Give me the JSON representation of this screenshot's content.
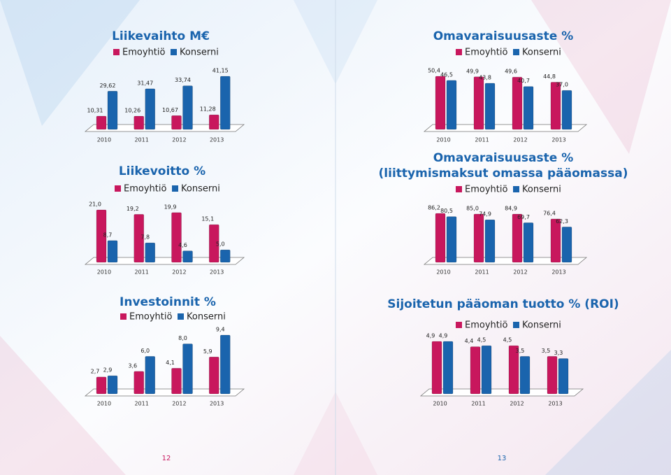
{
  "chart_data": [
    {
      "type": "bar",
      "title": "Liikevaihto M€",
      "categories": [
        "2010",
        "2011",
        "2012",
        "2013"
      ],
      "series": [
        {
          "name": "Emoyhtiö",
          "color": "#c8175d",
          "values": [
            10.31,
            10.26,
            10.67,
            11.28
          ],
          "value_labels": [
            "10,31",
            "10,26",
            "10,67",
            "11,28"
          ]
        },
        {
          "name": "Konserni",
          "color": "#1a64ad",
          "values": [
            29.62,
            31.47,
            33.74,
            41.15
          ],
          "value_labels": [
            "29,62",
            "31,47",
            "33,74",
            "41,15"
          ]
        }
      ]
    },
    {
      "type": "bar",
      "title": "Omavaraisuusaste %",
      "categories": [
        "2010",
        "2011",
        "2012",
        "2013"
      ],
      "series": [
        {
          "name": "Emoyhtiö",
          "color": "#c8175d",
          "values": [
            50.4,
            49.9,
            49.6,
            44.8
          ],
          "value_labels": [
            "50,4",
            "49,9",
            "49,6",
            "44,8"
          ]
        },
        {
          "name": "Konserni",
          "color": "#1a64ad",
          "values": [
            46.5,
            43.8,
            40.7,
            37.0
          ],
          "value_labels": [
            "46,5",
            "43,8",
            "40,7",
            "37,0"
          ]
        }
      ]
    },
    {
      "type": "bar",
      "title": "Liikevoitto %",
      "categories": [
        "2010",
        "2011",
        "2012",
        "2013"
      ],
      "series": [
        {
          "name": "Emoyhtiö",
          "color": "#c8175d",
          "values": [
            21.0,
            19.2,
            19.9,
            15.1
          ],
          "value_labels": [
            "21,0",
            "19,2",
            "19,9",
            "15,1"
          ]
        },
        {
          "name": "Konserni",
          "color": "#1a64ad",
          "values": [
            8.7,
            7.8,
            4.6,
            5.0
          ],
          "value_labels": [
            "8,7",
            "7,8",
            "4,6",
            "5,0"
          ]
        }
      ]
    },
    {
      "type": "bar",
      "title": "Omavaraisuusaste %",
      "subtitle": "(liittymismaksut omassa pääomassa)",
      "categories": [
        "2010",
        "2011",
        "2012",
        "2013"
      ],
      "series": [
        {
          "name": "Emoyhtiö",
          "color": "#c8175d",
          "values": [
            86.2,
            85.0,
            84.9,
            76.4
          ],
          "value_labels": [
            "86,2",
            "85,0",
            "84,9",
            "76,4"
          ]
        },
        {
          "name": "Konserni",
          "color": "#1a64ad",
          "values": [
            80.5,
            74.9,
            69.7,
            62.3
          ],
          "value_labels": [
            "80,5",
            "74,9",
            "69,7",
            "62,3"
          ]
        }
      ]
    },
    {
      "type": "bar",
      "title": "Investoinnit %",
      "categories": [
        "2010",
        "2011",
        "2012",
        "2013"
      ],
      "series": [
        {
          "name": "Emoyhtiö",
          "color": "#c8175d",
          "values": [
            2.7,
            3.6,
            4.1,
            5.9
          ],
          "value_labels": [
            "2,7",
            "3,6",
            "4,1",
            "5,9"
          ]
        },
        {
          "name": "Konserni",
          "color": "#1a64ad",
          "values": [
            2.9,
            6.0,
            8.0,
            9.4
          ],
          "value_labels": [
            "2,9",
            "6,0",
            "8,0",
            "9,4"
          ]
        }
      ]
    },
    {
      "type": "bar",
      "title": "Sijoitetun pääoman tuotto % (ROI)",
      "categories": [
        "2010",
        "2011",
        "2012",
        "2013"
      ],
      "series": [
        {
          "name": "Emoyhtiö",
          "color": "#c8175d",
          "values": [
            4.9,
            4.4,
            4.5,
            3.5
          ],
          "value_labels": [
            "4,9",
            "4,4",
            "4,5",
            "3,5"
          ]
        },
        {
          "name": "Konserni",
          "color": "#1a64ad",
          "values": [
            4.9,
            4.5,
            3.5,
            3.3
          ],
          "value_labels": [
            "4,9",
            "4,5",
            "3,5",
            "3,3"
          ]
        }
      ]
    }
  ],
  "pages": [
    12,
    13
  ]
}
